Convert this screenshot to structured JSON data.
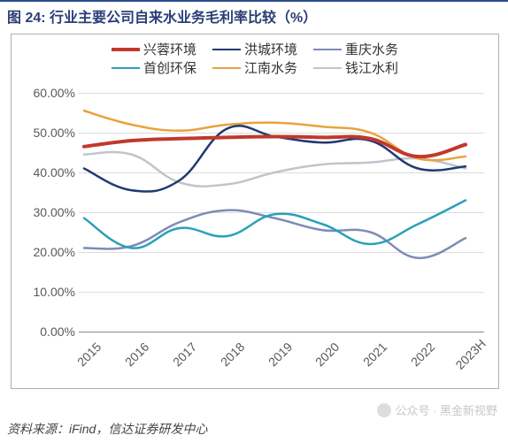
{
  "title": "图 24:  行业主要公司自来水业务毛利率比较（%）",
  "source": "资料来源：iFind，信达证券研发中心",
  "watermark": "公众号 · 黑金新视野",
  "chart": {
    "type": "line",
    "background_color": "#ffffff",
    "border_color": "#b0b0b0",
    "grid_color": "#dcdcdc",
    "title_color": "#2a3d77",
    "title_rule_color": "#2a4b8d",
    "title_fontsize": 16,
    "label_color": "#5a5a5a",
    "label_fontsize": 14,
    "x_labels": [
      "2015",
      "2016",
      "2017",
      "2018",
      "2019",
      "2020",
      "2021",
      "2022",
      "2023H"
    ],
    "x_label_rotation": -45,
    "y_min": 0,
    "y_max": 60,
    "y_tick_step": 10,
    "y_tick_format": "0.00%",
    "y_ticks": [
      "0.00%",
      "10.00%",
      "20.00%",
      "30.00%",
      "40.00%",
      "50.00%",
      "60.00%"
    ],
    "legend": {
      "position": "top-inside",
      "fontsize": 15,
      "rows": [
        [
          "series_xr",
          "series_hc",
          "series_cq"
        ],
        [
          "series_sc",
          "series_jn",
          "series_qj"
        ]
      ]
    },
    "series": {
      "series_xr": {
        "label": "兴蓉环境",
        "color": "#c0392b",
        "width": 4,
        "values": [
          46.5,
          48.0,
          48.5,
          48.8,
          49.0,
          48.8,
          48.5,
          44.0,
          47.0
        ]
      },
      "series_hc": {
        "label": "洪城环境",
        "color": "#1f3a73",
        "width": 2.5,
        "values": [
          41.0,
          35.5,
          38.0,
          51.0,
          49.0,
          47.5,
          48.0,
          41.0,
          41.5
        ]
      },
      "series_cq": {
        "label": "重庆水务",
        "color": "#7e8bb5",
        "width": 2.5,
        "values": [
          21.0,
          21.5,
          27.5,
          30.5,
          28.5,
          25.5,
          25.0,
          18.5,
          23.5
        ]
      },
      "series_sc": {
        "label": "首创环保",
        "color": "#2aa1b7",
        "width": 2.5,
        "values": [
          28.5,
          21.0,
          26.0,
          24.0,
          29.5,
          27.0,
          22.0,
          27.0,
          33.0
        ]
      },
      "series_jn": {
        "label": "江南水务",
        "color": "#e8a33d",
        "width": 2.5,
        "values": [
          55.5,
          52.0,
          50.5,
          52.0,
          52.5,
          51.5,
          50.0,
          43.5,
          44.0
        ]
      },
      "series_qj": {
        "label": "钱江水利",
        "color": "#bfc5cc",
        "width": 2.5,
        "values": [
          44.5,
          44.5,
          37.5,
          37.0,
          40.0,
          42.0,
          42.5,
          43.5,
          41.0
        ]
      }
    }
  }
}
